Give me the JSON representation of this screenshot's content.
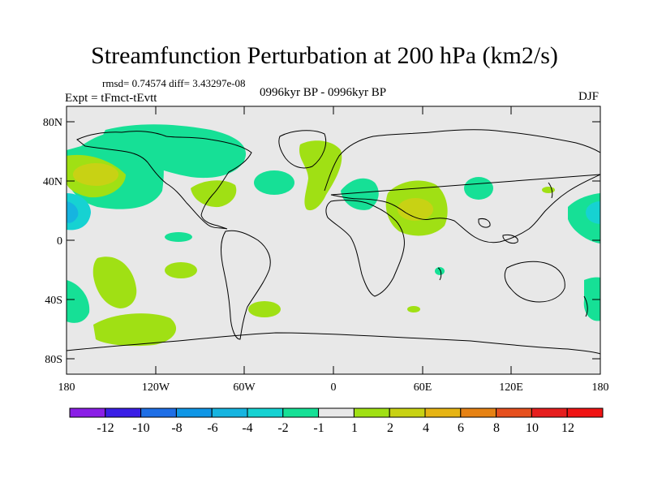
{
  "title": "Streamfunction Perturbation at 200 hPa (km2/s)",
  "stats": "rmsd= 0.74574 diff= 3.43297e-08",
  "expt": "Expt = tFmct-tEvtt",
  "period": "0996kyr BP - 0996kyr BP",
  "season": "DJF",
  "axes": {
    "lat_ticks": [
      "80N",
      "40N",
      "0",
      "40S",
      "80S"
    ],
    "lon_ticks": [
      "180",
      "120W",
      "60W",
      "0",
      "60E",
      "120E",
      "180"
    ]
  },
  "colorbar": {
    "labels": [
      "-12",
      "-10",
      "-8",
      "-6",
      "-4",
      "-2",
      "-1",
      "1",
      "2",
      "4",
      "6",
      "8",
      "10",
      "12"
    ],
    "colors": [
      "#8a1ee6",
      "#3a1ee6",
      "#1e6ee6",
      "#0f96e6",
      "#16b4e0",
      "#16d2d2",
      "#16e096",
      "#e8e8e8",
      "#a0e014",
      "#c8d214",
      "#e6b414",
      "#e68214",
      "#e6501e",
      "#e61e1e",
      "#f01414"
    ]
  },
  "fill_colors": {
    "ocean": "#e8e8e8",
    "neg1": "#16e096",
    "neg2": "#16d2d2",
    "pos1": "#a0e014",
    "pos2": "#c8d214"
  }
}
